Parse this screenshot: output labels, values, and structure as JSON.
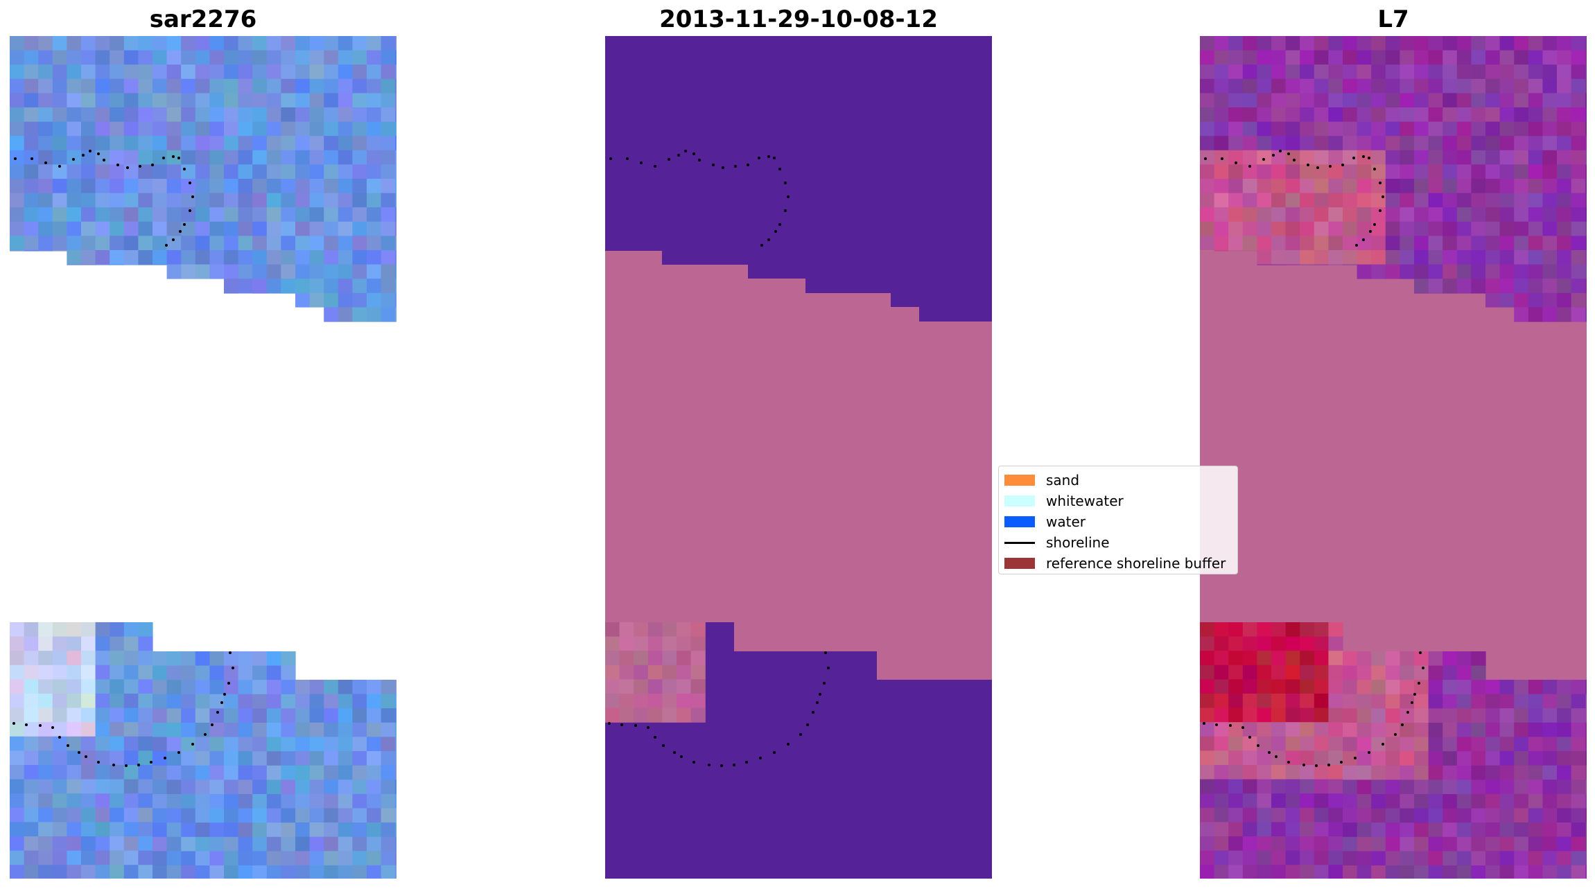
{
  "panels": [
    {
      "title": "sar2276",
      "style": "rgb"
    },
    {
      "title": "2013-11-29-10-08-12",
      "style": "classified"
    },
    {
      "title": "L7",
      "style": "overlay"
    }
  ],
  "legend": {
    "items": [
      {
        "label": "sand",
        "color": "#ff8c3a",
        "kind": "patch"
      },
      {
        "label": "whitewater",
        "color": "#ccffff",
        "kind": "patch"
      },
      {
        "label": "water",
        "color": "#0a5cff",
        "kind": "patch"
      },
      {
        "label": "shoreline",
        "color": "#000000",
        "kind": "line"
      },
      {
        "label": "reference shoreline buffer",
        "color": "#9c3535",
        "kind": "patch"
      }
    ]
  },
  "colors": {
    "rgb_base": "#6c93e2",
    "classified_water": "#552297",
    "nodata": "#bc6694",
    "overlay_base": "#8e35a3",
    "overlay_highlight": "#c01545",
    "shoreline_dots": "#000000"
  }
}
